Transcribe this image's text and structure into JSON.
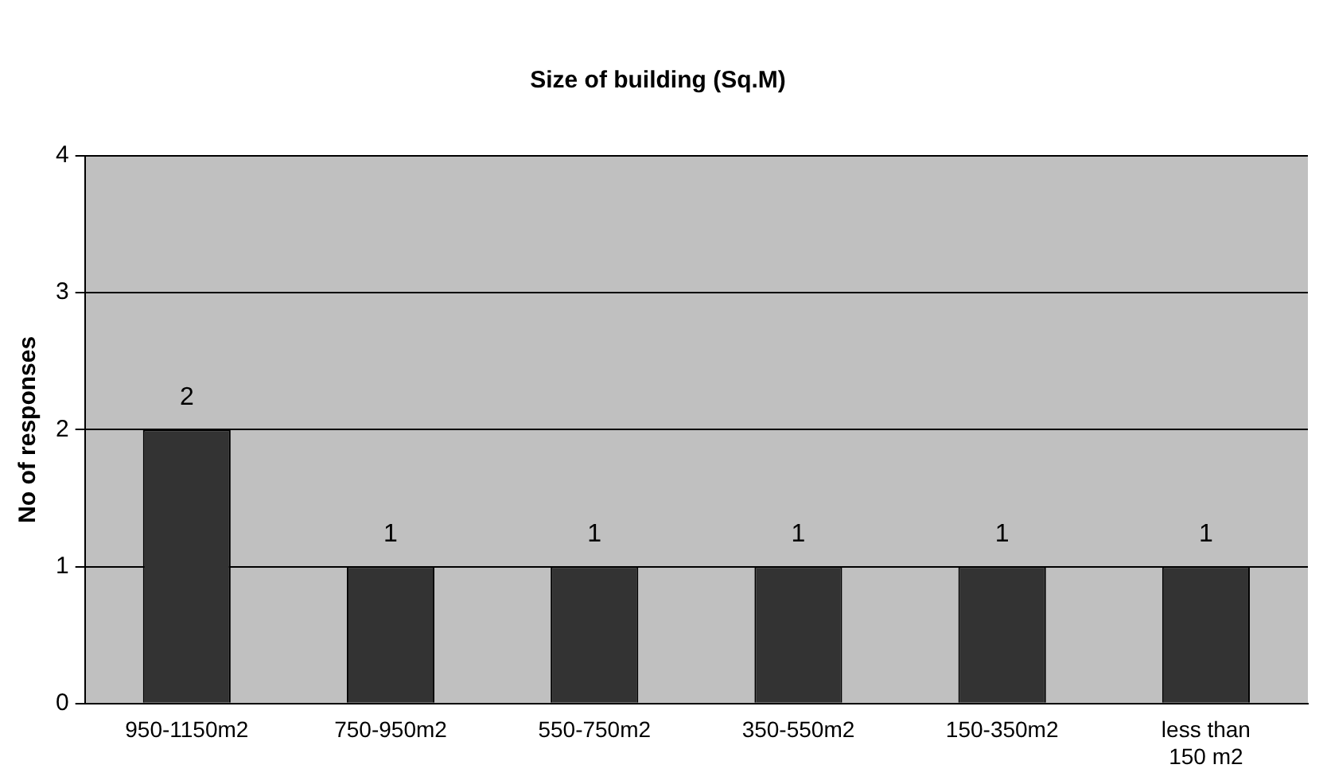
{
  "chart_data": {
    "type": "bar",
    "title": "Size of building (Sq.M)",
    "ylabel": "No of responses",
    "categories": [
      "950-1150m2",
      "750-950m2",
      "550-750m2",
      "350-550m2",
      "150-350m2",
      "less than 150 m2"
    ],
    "values": [
      2,
      1,
      1,
      1,
      1,
      1
    ],
    "color": "#333333",
    "ylim": [
      0,
      4
    ],
    "yticks": [
      0,
      1,
      2,
      3,
      4
    ],
    "grid": "y",
    "data_labels": true,
    "legend": false
  }
}
